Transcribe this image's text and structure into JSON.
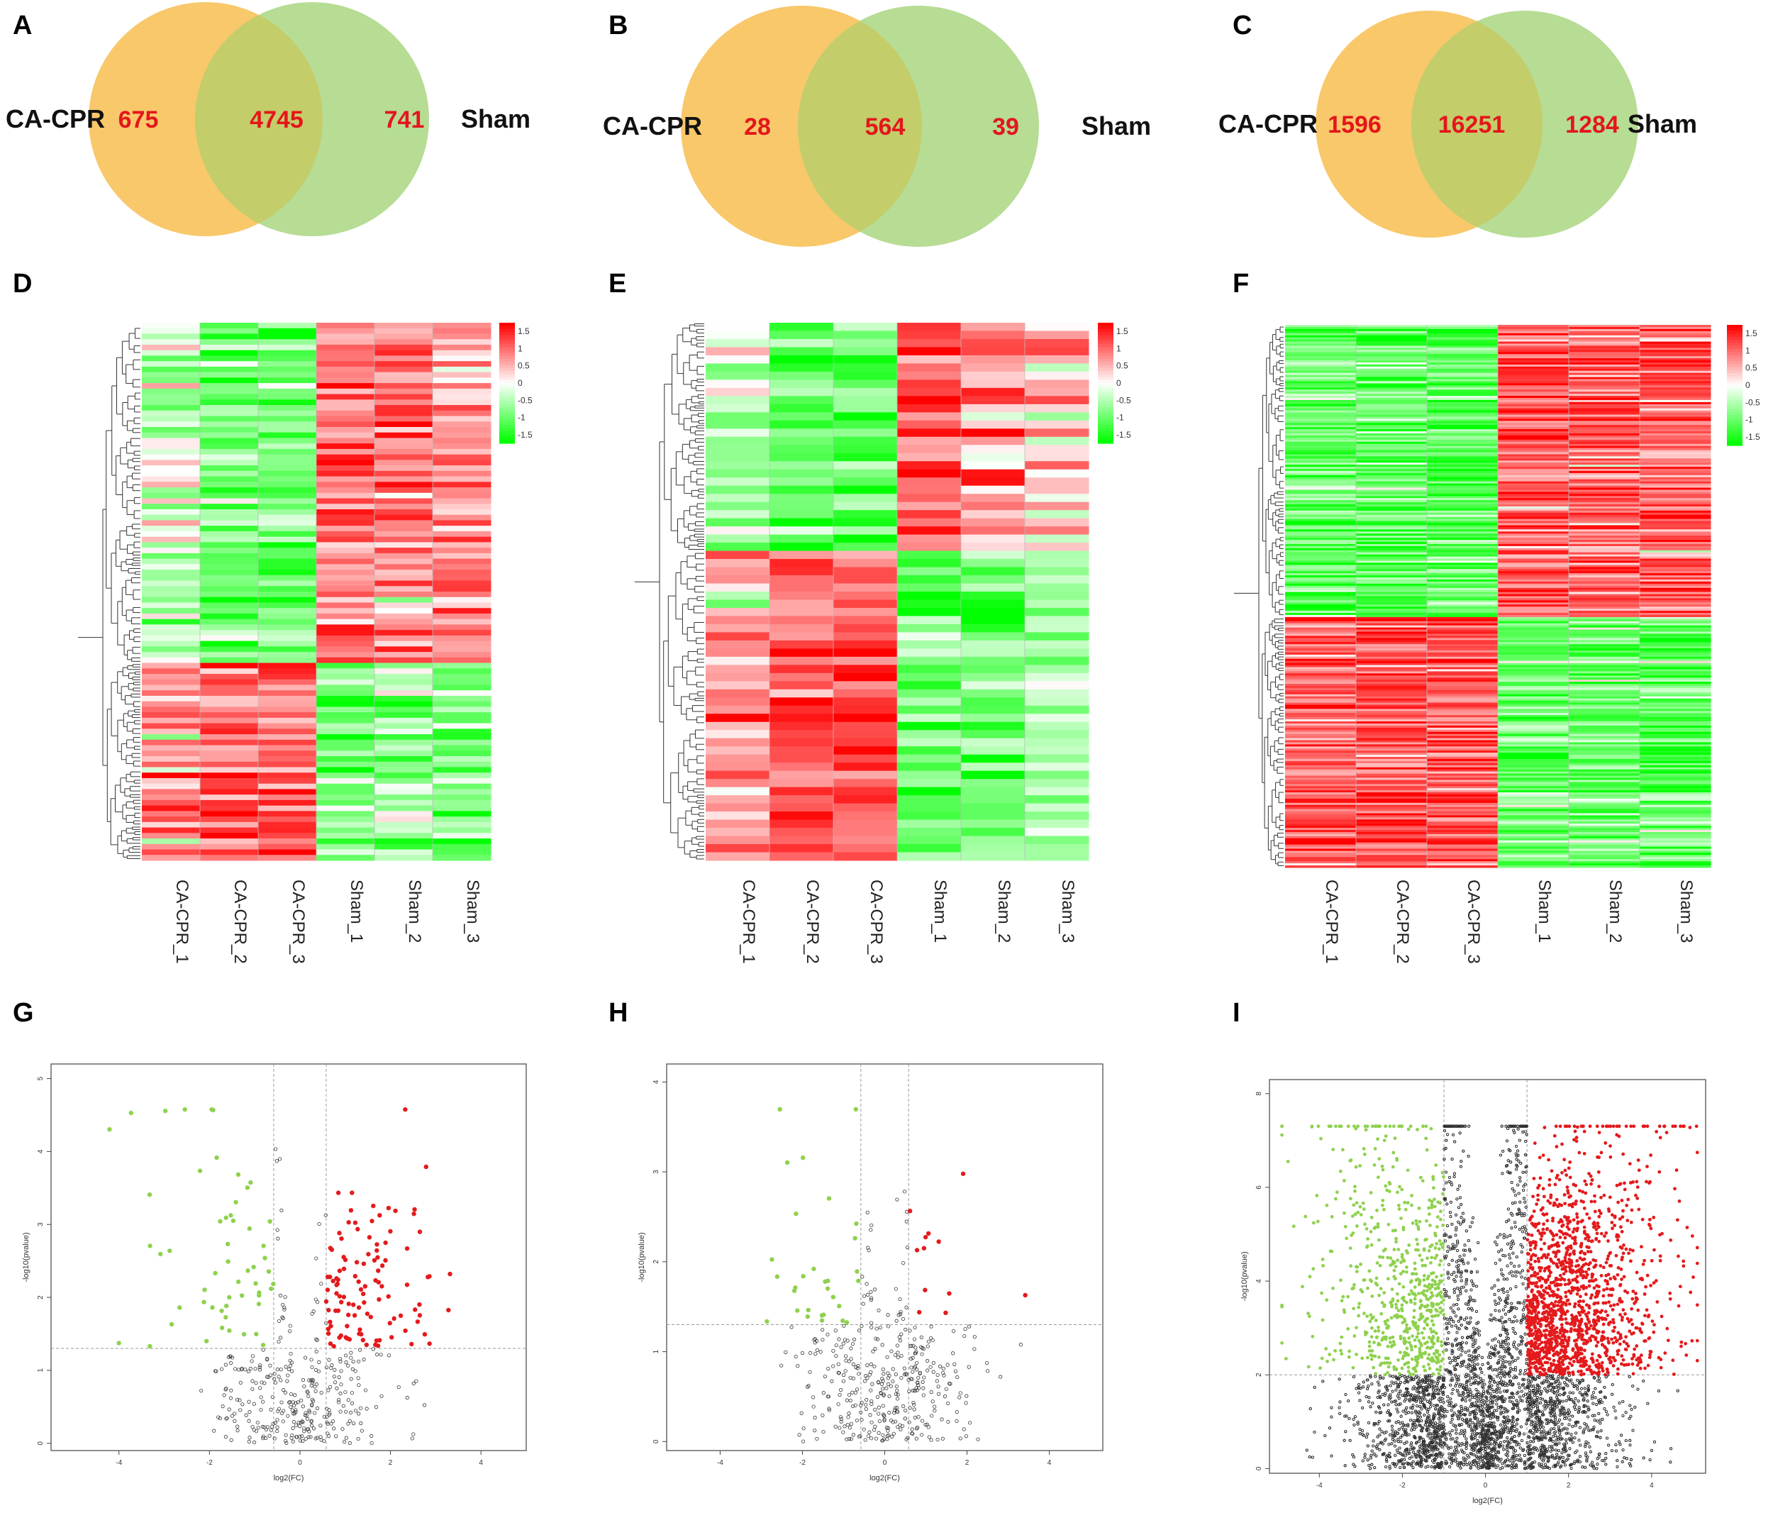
{
  "panels": {
    "A": "A",
    "B": "B",
    "C": "C",
    "D": "D",
    "E": "E",
    "F": "F",
    "G": "G",
    "H": "H",
    "I": "I"
  },
  "colors": {
    "venn_left": "#f8c86a",
    "venn_right": "#b7dc94",
    "venn_overlap": "#c3cd6a",
    "high": "#ff0000",
    "mid": "#ffffff",
    "low": "#00ff00",
    "volcano_up": "#e41a1c",
    "volcano_down": "#8fd14f",
    "volcano_ns": "#333333"
  },
  "chart_data": [
    {
      "type": "venn",
      "panel": "A",
      "sets": [
        "CA-CPR",
        "Sham"
      ],
      "left_only": "675",
      "overlap": "4745",
      "right_only": "741"
    },
    {
      "type": "venn",
      "panel": "B",
      "sets": [
        "CA-CPR",
        "Sham"
      ],
      "left_only": "28",
      "overlap": "564",
      "right_only": "39"
    },
    {
      "type": "venn",
      "panel": "C",
      "sets": [
        "CA-CPR",
        "Sham"
      ],
      "left_only": "1596",
      "overlap": "16251",
      "right_only": "1284"
    },
    {
      "type": "heatmap",
      "panel": "D",
      "columns": [
        "CA-CPR_1",
        "CA-CPR_2",
        "CA-CPR_3",
        "Sham_1",
        "Sham_2",
        "Sham_3"
      ],
      "colorbar_ticks": [
        "1.5",
        "1",
        "0.5",
        "0",
        "-0.5",
        "-1",
        "-1.5"
      ],
      "clusters": [
        {
          "rows": 62,
          "group_means": [
            -0.3,
            -0.9,
            -0.9,
            0.8,
            0.8,
            0.7
          ]
        },
        {
          "rows": 36,
          "group_means": [
            0.6,
            1.0,
            1.0,
            -0.7,
            -0.7,
            -0.8
          ]
        }
      ]
    },
    {
      "type": "heatmap",
      "panel": "E",
      "columns": [
        "CA-CPR_1",
        "CA-CPR_2",
        "CA-CPR_3",
        "Sham_1",
        "Sham_2",
        "Sham_3"
      ],
      "colorbar_ticks": [
        "1.5",
        "1",
        "0.5",
        "0",
        "-0.5",
        "-1",
        "-1.5"
      ],
      "clusters": [
        {
          "rows": 28,
          "group_means": [
            -0.4,
            -1.0,
            -1.0,
            1.1,
            0.7,
            0.4
          ]
        },
        {
          "rows": 38,
          "group_means": [
            0.6,
            1.0,
            1.1,
            -1.0,
            -0.9,
            -0.6
          ]
        }
      ]
    },
    {
      "type": "heatmap",
      "panel": "F",
      "columns": [
        "CA-CPR_1",
        "CA-CPR_2",
        "CA-CPR_3",
        "Sham_1",
        "Sham_2",
        "Sham_3"
      ],
      "colorbar_ticks": [
        "1.5",
        "1",
        "0.5",
        "0",
        "-0.5",
        "-1",
        "-1.5"
      ],
      "clusters": [
        {
          "rows": 140,
          "group_means": [
            -0.9,
            -1.0,
            -1.0,
            1.0,
            0.9,
            1.0
          ]
        },
        {
          "rows": 120,
          "group_means": [
            0.9,
            1.1,
            1.0,
            -1.0,
            -1.0,
            -1.0
          ]
        }
      ]
    },
    {
      "type": "scatter",
      "panel": "G",
      "xlabel": "log2(FC)",
      "ylabel": "-log10(pvalue)",
      "xlim": [
        -5.5,
        5.0
      ],
      "ylim": [
        -0.1,
        5.2
      ],
      "xticks": [
        "-4",
        "-2",
        "0",
        "2",
        "4"
      ],
      "yticks": [
        "0",
        "1",
        "2",
        "3",
        "4",
        "5"
      ],
      "fc_cutoff": 0.58,
      "p_cutoff": 1.3,
      "counts": {
        "up": 110,
        "down": 55,
        "ns": 320
      }
    },
    {
      "type": "scatter",
      "panel": "H",
      "xlabel": "log2(FC)",
      "ylabel": "-log10(pvalue)",
      "xlim": [
        -5.3,
        5.3
      ],
      "ylim": [
        -0.1,
        4.2
      ],
      "xticks": [
        "-4",
        "-2",
        "0",
        "2",
        "4"
      ],
      "yticks": [
        "0",
        "1",
        "2",
        "3",
        "4"
      ],
      "fc_cutoff": 0.58,
      "p_cutoff": 1.3,
      "counts": {
        "up": 12,
        "down": 30,
        "ns": 380
      }
    },
    {
      "type": "scatter",
      "panel": "I",
      "xlabel": "log2(FC)",
      "ylabel": "-log10(pvalue)",
      "xlim": [
        -5.2,
        5.3
      ],
      "ylim": [
        -0.1,
        8.3
      ],
      "xticks": [
        "-4",
        "-2",
        "0",
        "2",
        "4"
      ],
      "yticks": [
        "0",
        "2",
        "4",
        "6",
        "8"
      ],
      "fc_cutoff": 1.0,
      "p_cutoff": 2.0,
      "counts": {
        "up": 1500,
        "down": 650,
        "ns": 9000
      }
    }
  ]
}
